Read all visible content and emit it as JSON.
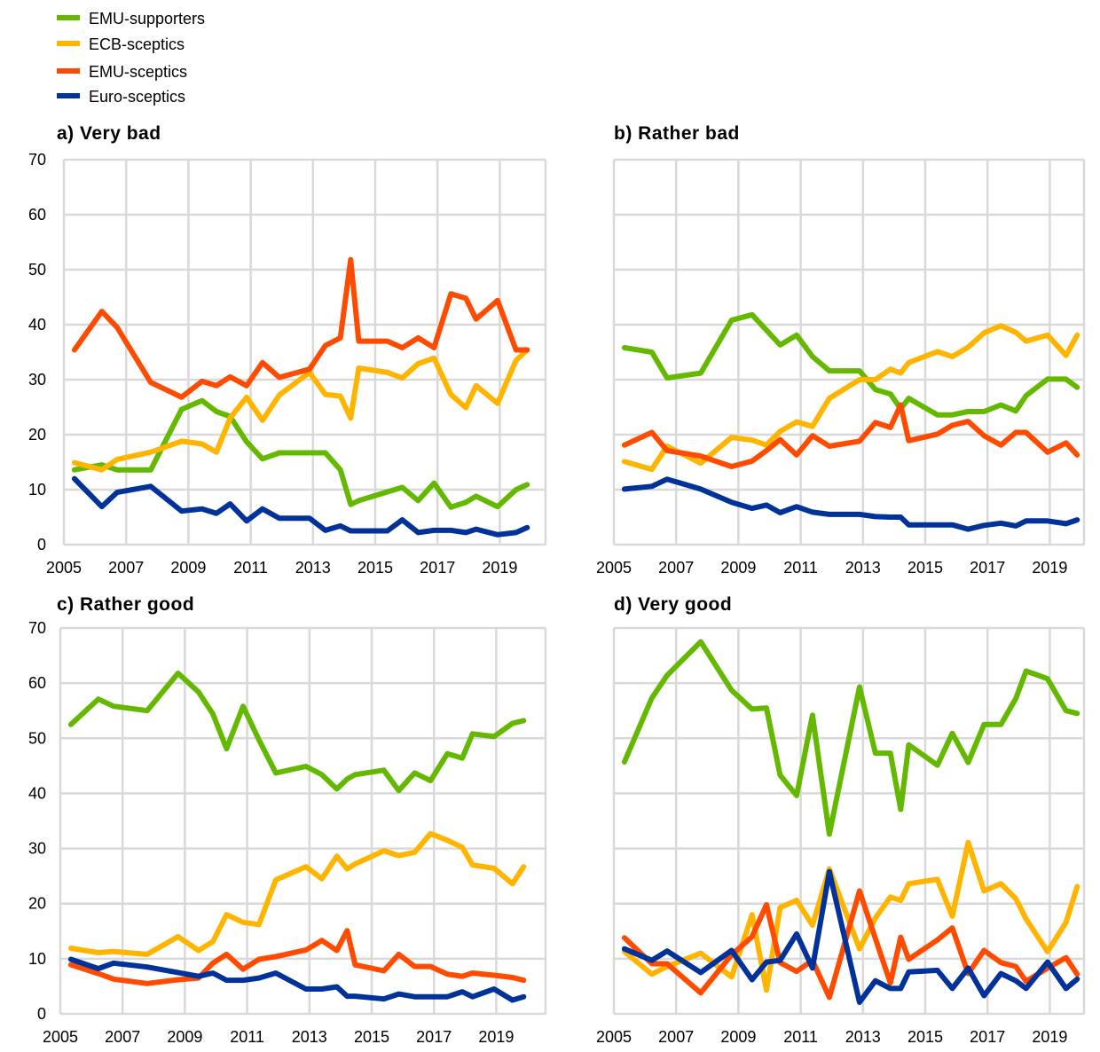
{
  "chart_data": [
    {
      "type": "line",
      "title": "a) Very bad",
      "x": [
        2005.34,
        2006.22,
        2006.71,
        2007.79,
        2008.78,
        2009.44,
        2009.9,
        2010.34,
        2010.87,
        2011.38,
        2011.92,
        2012.89,
        2013.4,
        2013.88,
        2014.21,
        2014.47,
        2015.39,
        2015.87,
        2016.38,
        2016.89,
        2017.43,
        2017.91,
        2018.24,
        2018.93,
        2019.52,
        2019.88
      ],
      "series": [
        {
          "name": "EMU-supporters",
          "values": [
            13.6,
            14.5,
            13.6,
            13.6,
            24.6,
            26.2,
            24.2,
            23.3,
            18.7,
            15.6,
            16.7,
            16.7,
            16.7,
            13.6,
            7.3,
            8.0,
            9.6,
            10.4,
            8.0,
            11.2,
            6.8,
            7.7,
            8.8,
            6.9,
            10.0,
            10.9
          ]
        },
        {
          "name": "ECB-sceptics",
          "values": [
            14.9,
            13.6,
            15.5,
            16.8,
            18.8,
            18.3,
            16.8,
            23.0,
            26.8,
            22.6,
            27.2,
            31.3,
            27.3,
            27.0,
            23.0,
            32.1,
            31.3,
            30.3,
            32.9,
            33.9,
            27.3,
            24.9,
            28.9,
            25.7,
            33.5,
            35.4
          ]
        },
        {
          "name": "EMU-sceptics",
          "values": [
            35.4,
            42.4,
            39.5,
            29.5,
            26.8,
            29.7,
            28.9,
            30.5,
            28.9,
            33.1,
            30.4,
            31.9,
            36.2,
            37.6,
            51.8,
            37.0,
            37.0,
            35.8,
            37.6,
            35.8,
            45.6,
            44.8,
            41.0,
            44.4,
            35.4,
            35.4
          ]
        },
        {
          "name": "Euro-sceptics",
          "values": [
            12.0,
            6.9,
            9.5,
            10.6,
            6.1,
            6.5,
            5.7,
            7.4,
            4.3,
            6.5,
            4.8,
            4.8,
            2.6,
            3.4,
            2.5,
            2.5,
            2.5,
            4.5,
            2.2,
            2.6,
            2.6,
            2.2,
            2.8,
            1.8,
            2.2,
            3.1
          ]
        }
      ],
      "xticks": [
        "2005",
        "2007",
        "2009",
        "2011",
        "2013",
        "2015",
        "2017",
        "2019"
      ],
      "yticks": [
        "0",
        "10",
        "20",
        "30",
        "40",
        "50",
        "60",
        "70"
      ],
      "ylim": [
        0,
        70
      ],
      "xlim": [
        2005,
        2020.5
      ],
      "grid": true,
      "show_yticks": true
    },
    {
      "type": "line",
      "title": "b) Rather bad",
      "x": [
        2005.34,
        2006.22,
        2006.71,
        2007.79,
        2008.78,
        2009.44,
        2009.9,
        2010.34,
        2010.87,
        2011.38,
        2011.92,
        2012.89,
        2013.4,
        2013.88,
        2014.21,
        2014.47,
        2015.39,
        2015.87,
        2016.38,
        2016.89,
        2017.43,
        2017.91,
        2018.24,
        2018.93,
        2019.52,
        2019.88
      ],
      "series": [
        {
          "name": "EMU-supporters",
          "values": [
            35.8,
            35.0,
            30.3,
            31.2,
            40.8,
            41.8,
            39.0,
            36.3,
            38.1,
            34.2,
            31.6,
            31.6,
            28.2,
            27.4,
            24.7,
            26.6,
            23.6,
            23.6,
            24.2,
            24.2,
            25.4,
            24.3,
            27.1,
            30.1,
            30.1,
            28.6
          ]
        },
        {
          "name": "ECB-sceptics",
          "values": [
            15.1,
            13.7,
            17.9,
            14.8,
            19.5,
            19.0,
            18.1,
            20.6,
            22.3,
            21.5,
            26.6,
            30.0,
            30.0,
            31.9,
            31.2,
            33.1,
            35.1,
            34.2,
            35.9,
            38.5,
            39.8,
            38.6,
            37.0,
            38.1,
            34.4,
            38.1
          ]
        },
        {
          "name": "EMU-sceptics",
          "values": [
            18.1,
            20.4,
            17.1,
            16.1,
            14.2,
            15.2,
            17.1,
            19.1,
            16.3,
            19.8,
            17.9,
            18.8,
            22.2,
            21.3,
            25.4,
            18.9,
            20.1,
            21.7,
            22.4,
            19.8,
            18.1,
            20.4,
            20.4,
            16.8,
            18.5,
            16.3
          ]
        },
        {
          "name": "Euro-sceptics",
          "values": [
            10.1,
            10.6,
            11.9,
            10.1,
            7.7,
            6.6,
            7.2,
            5.8,
            6.9,
            5.9,
            5.5,
            5.5,
            5.1,
            5.0,
            5.0,
            3.6,
            3.6,
            3.6,
            2.8,
            3.5,
            3.9,
            3.4,
            4.3,
            4.3,
            3.8,
            4.5
          ]
        }
      ],
      "xticks": [
        "2005",
        "2007",
        "2009",
        "2011",
        "2013",
        "2015",
        "2017",
        "2019"
      ],
      "ylim": [
        0,
        70
      ],
      "xlim": [
        2005,
        2020.5
      ],
      "grid": true,
      "show_yticks": false
    },
    {
      "type": "line",
      "title": "c) Rather good",
      "x": [
        2005.34,
        2006.22,
        2006.71,
        2007.79,
        2008.78,
        2009.44,
        2009.9,
        2010.34,
        2010.87,
        2011.38,
        2011.92,
        2012.89,
        2013.4,
        2013.88,
        2014.21,
        2014.47,
        2015.39,
        2015.87,
        2016.38,
        2016.89,
        2017.43,
        2017.91,
        2018.24,
        2018.93,
        2019.52,
        2019.88
      ],
      "series": [
        {
          "name": "EMU-supporters",
          "values": [
            52.5,
            57.1,
            55.8,
            55.0,
            61.8,
            58.4,
            54.4,
            48.1,
            55.8,
            49.7,
            43.7,
            44.9,
            43.4,
            40.8,
            42.6,
            43.4,
            44.2,
            40.5,
            43.7,
            42.3,
            47.2,
            46.4,
            50.8,
            50.3,
            52.7,
            53.2
          ]
        },
        {
          "name": "ECB-sceptics",
          "values": [
            11.9,
            11.1,
            11.3,
            10.8,
            14.0,
            11.5,
            13.1,
            18.0,
            16.6,
            16.2,
            24.3,
            26.7,
            24.5,
            28.6,
            26.3,
            27.2,
            29.6,
            28.7,
            29.3,
            32.7,
            31.5,
            30.2,
            27.0,
            26.4,
            23.6,
            26.7
          ]
        },
        {
          "name": "EMU-sceptics",
          "values": [
            8.9,
            7.3,
            6.3,
            5.5,
            6.2,
            6.5,
            9.2,
            10.8,
            8.1,
            9.9,
            10.4,
            11.6,
            13.3,
            11.5,
            15.1,
            8.9,
            7.8,
            10.8,
            8.6,
            8.6,
            7.2,
            6.8,
            7.4,
            7.0,
            6.6,
            6.1
          ]
        },
        {
          "name": "Euro-sceptics",
          "values": [
            9.9,
            8.2,
            9.2,
            8.5,
            7.5,
            6.8,
            7.4,
            6.1,
            6.1,
            6.5,
            7.4,
            4.5,
            4.5,
            4.9,
            3.2,
            3.2,
            2.7,
            3.6,
            3.1,
            3.1,
            3.1,
            4.0,
            3.1,
            4.5,
            2.5,
            3.1
          ]
        }
      ],
      "xticks": [
        "2005",
        "2007",
        "2009",
        "2011",
        "2013",
        "2015",
        "2017",
        "2019"
      ],
      "yticks": [
        "0",
        "10",
        "20",
        "30",
        "40",
        "50",
        "60",
        "70"
      ],
      "ylim": [
        0,
        70
      ],
      "xlim": [
        2005,
        2020.5
      ],
      "grid": true,
      "show_yticks": true
    },
    {
      "type": "line",
      "title": "d) Very good",
      "x": [
        2005.34,
        2006.22,
        2006.71,
        2007.79,
        2008.78,
        2009.44,
        2009.9,
        2010.34,
        2010.87,
        2011.38,
        2011.92,
        2012.89,
        2013.4,
        2013.88,
        2014.21,
        2014.47,
        2015.39,
        2015.87,
        2016.38,
        2016.89,
        2017.43,
        2017.91,
        2018.24,
        2018.93,
        2019.52,
        2019.88
      ],
      "series": [
        {
          "name": "EMU-supporters",
          "values": [
            45.7,
            57.3,
            61.4,
            67.5,
            58.7,
            55.3,
            55.5,
            43.3,
            39.6,
            54.2,
            32.6,
            59.3,
            47.3,
            47.3,
            37.1,
            48.8,
            45.1,
            50.9,
            45.6,
            52.5,
            52.5,
            57.2,
            62.2,
            60.8,
            55.0,
            54.5
          ]
        },
        {
          "name": "ECB-sceptics",
          "values": [
            11.3,
            7.2,
            8.6,
            11.0,
            6.7,
            18.0,
            4.3,
            19.3,
            20.6,
            16.1,
            26.3,
            11.8,
            17.4,
            21.2,
            20.6,
            23.6,
            24.4,
            17.7,
            31.1,
            22.3,
            23.6,
            20.9,
            17.2,
            11.3,
            16.6,
            23.1
          ]
        },
        {
          "name": "EMU-sceptics",
          "values": [
            13.8,
            9.1,
            9.1,
            3.8,
            10.7,
            14.0,
            19.8,
            9.3,
            7.7,
            9.7,
            3.0,
            22.3,
            13.7,
            5.6,
            13.9,
            9.9,
            13.4,
            15.6,
            7.3,
            11.5,
            9.3,
            8.6,
            5.9,
            8.3,
            10.2,
            7.2
          ]
        },
        {
          "name": "Euro-sceptics",
          "values": [
            11.8,
            9.7,
            11.4,
            7.5,
            11.5,
            6.2,
            9.4,
            9.7,
            14.5,
            8.3,
            25.8,
            2.1,
            6.0,
            4.6,
            4.6,
            7.6,
            7.9,
            4.6,
            8.3,
            3.3,
            7.3,
            6.0,
            4.6,
            9.4,
            4.6,
            6.3
          ]
        }
      ],
      "xticks": [
        "2005",
        "2007",
        "2009",
        "2011",
        "2013",
        "2015",
        "2017",
        "2019"
      ],
      "ylim": [
        0,
        70
      ],
      "xlim": [
        2005,
        2020.5
      ],
      "grid": true,
      "show_yticks": false
    }
  ],
  "legend": {
    "placement": "top-left",
    "entries": [
      {
        "name": "EMU-supporters",
        "color": "#65b800"
      },
      {
        "name": "ECB-sceptics",
        "color": "#ffb400"
      },
      {
        "name": "EMU-sceptics",
        "color": "#ff4b00"
      },
      {
        "name": "Euro-sceptics",
        "color": "#003299"
      }
    ]
  }
}
